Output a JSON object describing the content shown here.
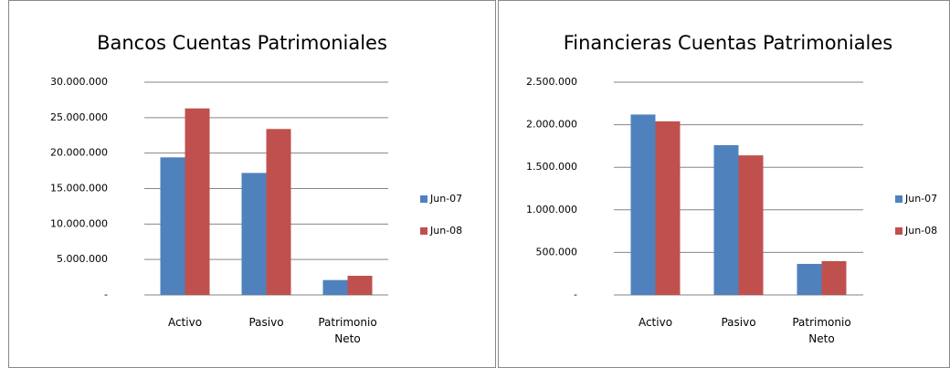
{
  "chart_data": [
    {
      "type": "bar",
      "title": "Bancos Cuentas Patrimoniales",
      "categories": [
        "Activo",
        "Pasivo",
        "Patrimonio Neto"
      ],
      "series": [
        {
          "name": "Jun-07",
          "color": "#4f81bd",
          "values": [
            19400000,
            17200000,
            2100000
          ]
        },
        {
          "name": "Jun-08",
          "color": "#c0504d",
          "values": [
            26300000,
            23400000,
            2700000
          ]
        }
      ],
      "ylim": [
        0,
        30000000
      ],
      "yticks": [
        {
          "value": 0,
          "label": "-"
        },
        {
          "value": 5000000,
          "label": "5.000.000"
        },
        {
          "value": 10000000,
          "label": "10.000.000"
        },
        {
          "value": 15000000,
          "label": "15.000.000"
        },
        {
          "value": 20000000,
          "label": "20.000.000"
        },
        {
          "value": 25000000,
          "label": "25.000.000"
        },
        {
          "value": 30000000,
          "label": "30.000.000"
        }
      ],
      "grid": true,
      "legend": "right"
    },
    {
      "type": "bar",
      "title": "Financieras Cuentas Patrimoniales",
      "categories": [
        "Activo",
        "Pasivo",
        "Patrimonio Neto"
      ],
      "series": [
        {
          "name": "Jun-07",
          "color": "#4f81bd",
          "values": [
            2120000,
            1760000,
            365000
          ]
        },
        {
          "name": "Jun-08",
          "color": "#c0504d",
          "values": [
            2040000,
            1640000,
            397000
          ]
        }
      ],
      "ylim": [
        0,
        2500000
      ],
      "yticks": [
        {
          "value": 0,
          "label": "-"
        },
        {
          "value": 500000,
          "label": "500.000"
        },
        {
          "value": 1000000,
          "label": "1.000.000"
        },
        {
          "value": 1500000,
          "label": "1.500.000"
        },
        {
          "value": 2000000,
          "label": "2.000.000"
        },
        {
          "value": 2500000,
          "label": "2.500.000"
        }
      ],
      "grid": true,
      "legend": "right"
    }
  ]
}
